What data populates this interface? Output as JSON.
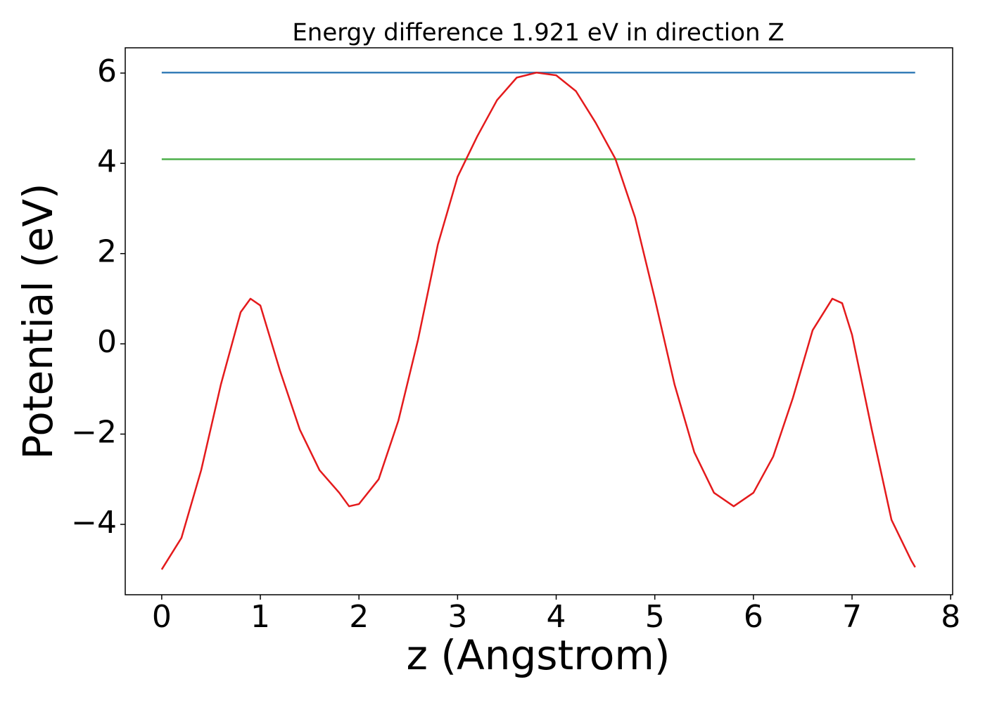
{
  "chart_data": {
    "type": "line",
    "title": "Energy difference 1.921 eV in direction Z",
    "x_label": "z (Angstrom)",
    "y_label": "Potential (eV)",
    "xlim": [
      -0.37,
      8.02
    ],
    "ylim": [
      -5.56,
      6.56
    ],
    "xticks": [
      0,
      1,
      2,
      3,
      4,
      5,
      6,
      7,
      8
    ],
    "yticks": [
      {
        "value": -4,
        "label": "−4"
      },
      {
        "value": -2,
        "label": "−2"
      },
      0,
      2,
      4,
      6
    ],
    "grid": false,
    "series": [
      {
        "color": "#e41a1c",
        "x": [
          0,
          0.2,
          0.4,
          0.6,
          0.8,
          0.9,
          1.0,
          1.2,
          1.4,
          1.6,
          1.8,
          1.9,
          2.0,
          2.2,
          2.4,
          2.6,
          2.8,
          3.0,
          3.2,
          3.4,
          3.6,
          3.8,
          4.0,
          4.2,
          4.4,
          4.6,
          4.8,
          5.0,
          5.2,
          5.4,
          5.6,
          5.8,
          6.0,
          6.2,
          6.4,
          6.6,
          6.8,
          6.9,
          7.0,
          7.2,
          7.4,
          7.6,
          7.64
        ],
        "values": [
          -5.0,
          -4.3,
          -2.8,
          -0.9,
          0.7,
          1.0,
          0.85,
          -0.6,
          -1.9,
          -2.8,
          -3.3,
          -3.6,
          -3.55,
          -3.0,
          -1.7,
          0.1,
          2.2,
          3.7,
          4.6,
          5.4,
          5.9,
          6.01,
          5.95,
          5.6,
          4.9,
          4.1,
          2.8,
          1.0,
          -0.9,
          -2.4,
          -3.3,
          -3.6,
          -3.3,
          -2.5,
          -1.2,
          0.3,
          1.0,
          0.9,
          0.2,
          -1.9,
          -3.9,
          -4.8,
          -4.95
        ]
      },
      {
        "color": "#377eb8",
        "x": [
          0,
          7.64
        ],
        "values": [
          6.01,
          6.01
        ]
      },
      {
        "color": "#4daf4a",
        "x": [
          0,
          7.64
        ],
        "values": [
          4.09,
          4.09
        ]
      }
    ]
  }
}
